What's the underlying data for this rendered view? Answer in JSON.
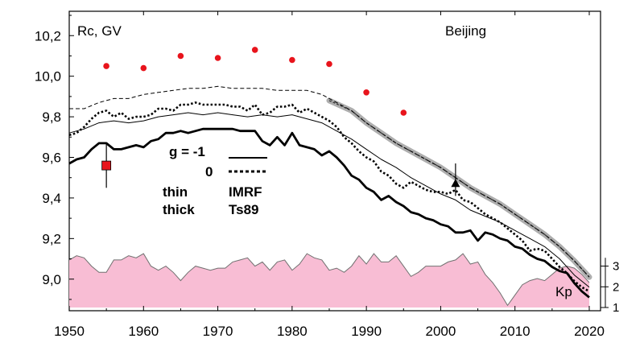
{
  "chart_data": {
    "type": "line",
    "ylabel": "Rc, GV",
    "location_label": "Beijing",
    "kp_label": "Kp",
    "xlim": [
      1950,
      2020
    ],
    "ylim": [
      8.88,
      10.32
    ],
    "x_ticks": [
      "1950",
      "1960",
      "1970",
      "1980",
      "1990",
      "2000",
      "2010",
      "2020"
    ],
    "y_ticks": [
      "9,0",
      "9,2",
      "9,4",
      "9,6",
      "9,8",
      "10,0",
      "10,2"
    ],
    "kp_ticks": [
      "1",
      "2",
      "3"
    ],
    "kp_ylim": [
      1,
      3.8
    ],
    "legend": {
      "g_minus1": "g  = -1",
      "g_zero": "0",
      "thin": "thin",
      "thick": "thick",
      "imrf": "IMRF",
      "ts89": "Ts89"
    },
    "colors": {
      "series": "#000000",
      "highlight": "#a0a0a0",
      "dots": "#e8141c",
      "kp_fill": "#f8bdd4",
      "kp_stroke": "#707070"
    },
    "series": [
      {
        "style": "dashed-thin",
        "x": [
          1950,
          1952,
          1954,
          1956,
          1958,
          1960,
          1962,
          1964,
          1966,
          1968,
          1970,
          1972,
          1974,
          1976,
          1978,
          1980,
          1982,
          1984,
          1986,
          1988,
          1990,
          1992,
          1994,
          1996,
          1998,
          2000,
          2002,
          2004,
          2006,
          2008,
          2010,
          2012,
          2014,
          2016,
          2018,
          2020
        ],
        "values": [
          9.84,
          9.84,
          9.87,
          9.89,
          9.89,
          9.91,
          9.92,
          9.93,
          9.94,
          9.94,
          9.95,
          9.94,
          9.94,
          9.94,
          9.93,
          9.93,
          9.93,
          9.91,
          9.87,
          9.83,
          9.77,
          9.72,
          9.67,
          9.63,
          9.59,
          9.55,
          9.5,
          9.45,
          9.41,
          9.37,
          9.32,
          9.27,
          9.22,
          9.16,
          9.09,
          9.01
        ]
      },
      {
        "style": "dotted-thick",
        "x": [
          1950,
          1951,
          1952,
          1953,
          1954,
          1955,
          1956,
          1957,
          1958,
          1959,
          1960,
          1961,
          1962,
          1963,
          1964,
          1965,
          1966,
          1967,
          1968,
          1969,
          1970,
          1971,
          1972,
          1973,
          1974,
          1975,
          1976,
          1977,
          1978,
          1979,
          1980,
          1981,
          1982,
          1983,
          1984,
          1985,
          1986,
          1987,
          1988,
          1989,
          1990,
          1991,
          1992,
          1993,
          1994,
          1995,
          1996,
          1997,
          1998,
          1999,
          2000,
          2001,
          2002,
          2003,
          2004,
          2005,
          2006,
          2007,
          2008,
          2009,
          2010,
          2011,
          2012,
          2013,
          2014,
          2015,
          2016,
          2017,
          2018,
          2019,
          2020
        ],
        "values": [
          9.71,
          9.72,
          9.75,
          9.79,
          9.82,
          9.83,
          9.8,
          9.82,
          9.79,
          9.8,
          9.8,
          9.81,
          9.84,
          9.84,
          9.83,
          9.86,
          9.86,
          9.87,
          9.86,
          9.86,
          9.86,
          9.86,
          9.85,
          9.85,
          9.83,
          9.86,
          9.81,
          9.82,
          9.85,
          9.85,
          9.86,
          9.82,
          9.84,
          9.82,
          9.8,
          9.78,
          9.75,
          9.7,
          9.67,
          9.63,
          9.6,
          9.58,
          9.53,
          9.51,
          9.47,
          9.45,
          9.48,
          9.46,
          9.44,
          9.43,
          9.43,
          9.42,
          9.44,
          9.39,
          9.38,
          9.35,
          9.32,
          9.3,
          9.28,
          9.25,
          9.22,
          9.19,
          9.14,
          9.15,
          9.14,
          9.1,
          9.06,
          9.03,
          8.99,
          8.96,
          8.94
        ]
      },
      {
        "style": "solid-thin",
        "x": [
          1950,
          1952,
          1954,
          1956,
          1958,
          1960,
          1962,
          1964,
          1966,
          1968,
          1970,
          1972,
          1974,
          1976,
          1978,
          1980,
          1982,
          1984,
          1986,
          1988,
          1990,
          1992,
          1994,
          1996,
          1998,
          2000,
          2002,
          2004,
          2006,
          2008,
          2010,
          2012,
          2014,
          2016,
          2018,
          2020
        ],
        "values": [
          9.72,
          9.74,
          9.77,
          9.78,
          9.77,
          9.78,
          9.8,
          9.81,
          9.82,
          9.81,
          9.82,
          9.81,
          9.8,
          9.81,
          9.8,
          9.81,
          9.79,
          9.77,
          9.73,
          9.69,
          9.64,
          9.59,
          9.55,
          9.5,
          9.46,
          9.42,
          9.39,
          9.34,
          9.31,
          9.28,
          9.24,
          9.2,
          9.16,
          9.1,
          9.02,
          8.96
        ]
      },
      {
        "style": "solid-thick",
        "x": [
          1950,
          1951,
          1952,
          1953,
          1954,
          1955,
          1956,
          1957,
          1958,
          1959,
          1960,
          1961,
          1962,
          1963,
          1964,
          1965,
          1966,
          1967,
          1968,
          1969,
          1970,
          1971,
          1972,
          1973,
          1974,
          1975,
          1976,
          1977,
          1978,
          1979,
          1980,
          1981,
          1982,
          1983,
          1984,
          1985,
          1986,
          1987,
          1988,
          1989,
          1990,
          1991,
          1992,
          1993,
          1994,
          1995,
          1996,
          1997,
          1998,
          1999,
          2000,
          2001,
          2002,
          2003,
          2004,
          2005,
          2006,
          2007,
          2008,
          2009,
          2010,
          2011,
          2012,
          2013,
          2014,
          2015,
          2016,
          2017,
          2018,
          2019,
          2020
        ],
        "values": [
          9.57,
          9.59,
          9.6,
          9.64,
          9.67,
          9.67,
          9.64,
          9.64,
          9.65,
          9.66,
          9.65,
          9.68,
          9.69,
          9.72,
          9.72,
          9.73,
          9.72,
          9.73,
          9.74,
          9.74,
          9.74,
          9.74,
          9.74,
          9.73,
          9.73,
          9.73,
          9.68,
          9.66,
          9.7,
          9.66,
          9.72,
          9.66,
          9.65,
          9.64,
          9.61,
          9.63,
          9.6,
          9.56,
          9.51,
          9.49,
          9.45,
          9.43,
          9.39,
          9.41,
          9.38,
          9.36,
          9.33,
          9.32,
          9.3,
          9.29,
          9.27,
          9.26,
          9.23,
          9.23,
          9.24,
          9.19,
          9.23,
          9.22,
          9.2,
          9.19,
          9.16,
          9.15,
          9.12,
          9.1,
          9.09,
          9.06,
          9.04,
          9.03,
          8.98,
          8.94,
          8.91
        ]
      },
      {
        "style": "gray-highlight",
        "x": [
          1985,
          1988,
          1990,
          1992,
          1994,
          1996,
          1998,
          2000,
          2002,
          2004,
          2006,
          2008,
          2010,
          2012,
          2014,
          2016,
          2018,
          2020
        ],
        "values": [
          9.88,
          9.83,
          9.77,
          9.72,
          9.67,
          9.63,
          9.59,
          9.55,
          9.5,
          9.45,
          9.41,
          9.37,
          9.32,
          9.27,
          9.22,
          9.16,
          9.09,
          9.01
        ]
      }
    ],
    "red_dots": {
      "x": [
        1955,
        1960,
        1965,
        1970,
        1975,
        1980,
        1985,
        1990,
        1995
      ],
      "values": [
        10.05,
        10.04,
        10.1,
        10.09,
        10.13,
        10.08,
        10.06,
        9.92,
        9.82
      ]
    },
    "red_square": {
      "x": 1955,
      "value": 9.56,
      "err_low": 9.45,
      "err_high": 9.67
    },
    "triangle": {
      "x": 2002,
      "value": 9.47,
      "err_low": 9.41,
      "err_high": 9.57
    },
    "kp": {
      "x": [
        1950,
        1951,
        1952,
        1953,
        1954,
        1955,
        1956,
        1957,
        1958,
        1959,
        1960,
        1961,
        1962,
        1963,
        1964,
        1965,
        1966,
        1967,
        1968,
        1969,
        1970,
        1971,
        1972,
        1973,
        1974,
        1975,
        1976,
        1977,
        1978,
        1979,
        1980,
        1981,
        1982,
        1983,
        1984,
        1985,
        1986,
        1987,
        1988,
        1989,
        1990,
        1991,
        1992,
        1993,
        1994,
        1995,
        1996,
        1997,
        1998,
        1999,
        2000,
        2001,
        2002,
        2003,
        2004,
        2005,
        2006,
        2007,
        2008,
        2009,
        2010,
        2011,
        2012,
        2013,
        2014,
        2015,
        2016,
        2017,
        2018,
        2019,
        2020
      ],
      "values": [
        3.3,
        3.5,
        3.4,
        3.0,
        2.7,
        2.7,
        3.3,
        3.3,
        3.5,
        3.4,
        3.6,
        3.0,
        2.8,
        3.0,
        2.7,
        2.3,
        2.7,
        3.0,
        2.9,
        2.8,
        2.9,
        2.9,
        3.2,
        3.3,
        3.4,
        3.0,
        3.2,
        2.8,
        3.2,
        3.3,
        2.8,
        3.1,
        3.6,
        3.4,
        3.3,
        2.8,
        2.9,
        2.7,
        3.0,
        3.5,
        3.1,
        3.6,
        3.2,
        3.2,
        3.5,
        3.0,
        2.5,
        2.7,
        3.0,
        3.0,
        3.0,
        3.2,
        3.3,
        3.6,
        3.1,
        3.2,
        2.6,
        2.2,
        1.7,
        1.1,
        1.6,
        2.1,
        2.3,
        2.4,
        2.3,
        2.6,
        2.9,
        3.0,
        2.9,
        2.6,
        2.2
      ]
    }
  }
}
